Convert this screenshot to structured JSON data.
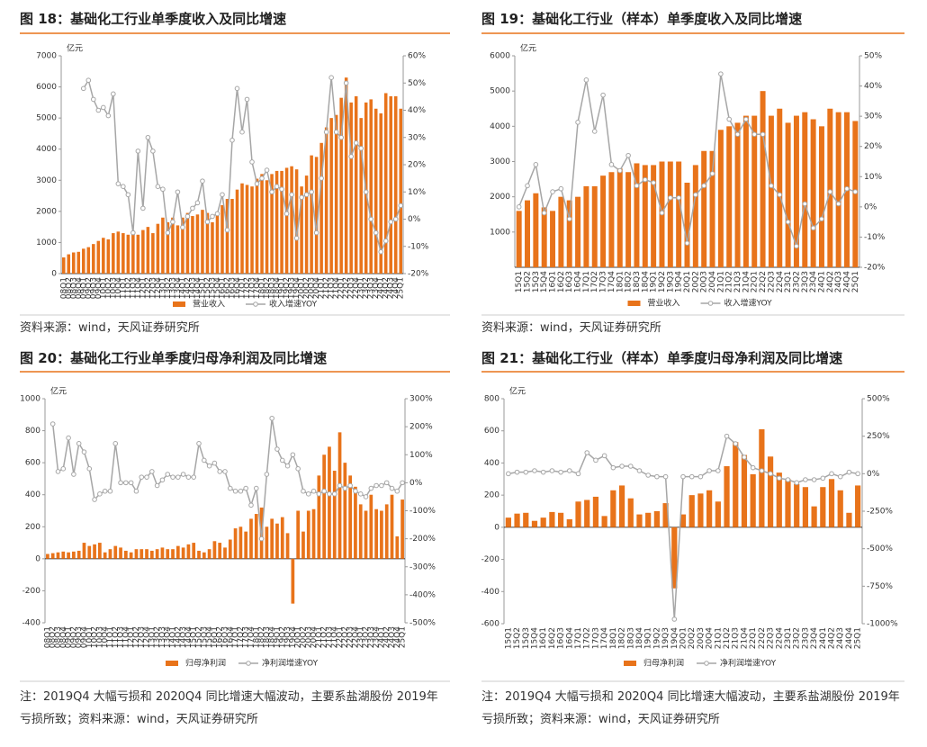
{
  "chart_data": [
    {
      "type": "bar",
      "title": "图 18：基础化工行业单季度收入及同比增速",
      "unit": "亿元",
      "source": "资料来源：wind，天风证券研究所",
      "categories": [
        "08Q1",
        "08Q2",
        "08Q3",
        "08Q4",
        "09Q1",
        "09Q2",
        "09Q3",
        "09Q4",
        "10Q1",
        "10Q2",
        "10Q3",
        "10Q4",
        "11Q1",
        "11Q2",
        "11Q3",
        "11Q4",
        "12Q1",
        "12Q2",
        "12Q3",
        "12Q4",
        "13Q1",
        "13Q2",
        "13Q3",
        "13Q4",
        "14Q1",
        "14Q2",
        "14Q3",
        "14Q4",
        "15Q1",
        "15Q2",
        "15Q3",
        "15Q4",
        "16Q1",
        "16Q2",
        "16Q3",
        "16Q4",
        "17Q1",
        "17Q2",
        "17Q3",
        "17Q4",
        "18Q1",
        "18Q2",
        "18Q3",
        "18Q4",
        "19Q1",
        "19Q2",
        "19Q3",
        "19Q4",
        "20Q1",
        "20Q2",
        "20Q3",
        "20Q4",
        "21Q1",
        "21Q2",
        "21Q3",
        "21Q4",
        "22Q1",
        "22Q2",
        "22Q3",
        "22Q4",
        "23Q1",
        "23Q2",
        "23Q3",
        "23Q4",
        "24Q1",
        "24Q2",
        "24Q3",
        "24Q4",
        "25Q1"
      ],
      "series": [
        {
          "name": "营业收入",
          "color": "#e8731a",
          "values": [
            520,
            620,
            680,
            700,
            800,
            850,
            950,
            1050,
            1150,
            1100,
            1300,
            1350,
            1300,
            1250,
            1350,
            1250,
            1400,
            1500,
            1300,
            1600,
            1800,
            1650,
            1800,
            1550,
            1800,
            1950,
            1850,
            1900,
            2050,
            1950,
            1650,
            1950,
            2200,
            2400,
            2400,
            2700,
            2900,
            2850,
            2800,
            3050,
            3200,
            3000,
            3200,
            3300,
            3300,
            3400,
            3450,
            3350,
            2800,
            3150,
            3800,
            3750,
            4200,
            4700,
            5000,
            5100,
            5650,
            6300,
            5500,
            5700,
            5000,
            5500,
            5600,
            5300,
            5150,
            5800,
            5700,
            5700,
            5300
          ]
        },
        {
          "name": "收入增速YOY",
          "color": "#a6a6a6",
          "axis": "y2",
          "values": [
            null,
            null,
            null,
            null,
            48,
            51,
            44,
            40,
            41,
            38,
            46,
            13,
            12,
            9,
            -5,
            25,
            4,
            30,
            25,
            12,
            11,
            -5,
            -1,
            10,
            -3,
            1,
            4,
            6,
            14,
            -1,
            1,
            2,
            9,
            -4,
            29,
            48,
            32,
            44,
            21,
            13,
            15,
            18,
            10,
            12,
            11,
            2,
            9,
            -7,
            8,
            9,
            10,
            -5,
            15,
            32,
            52,
            32,
            30,
            50,
            23,
            28,
            26,
            10,
            0,
            -5,
            -12,
            -8,
            -1,
            0,
            5
          ]
        }
      ],
      "ylim": [
        0,
        7000
      ],
      "yticks": [
        0,
        1000,
        2000,
        3000,
        4000,
        5000,
        6000,
        7000
      ],
      "y2lim": [
        -20,
        60
      ],
      "y2ticks": [
        {
          "value": 60,
          "label": "60%"
        },
        {
          "value": 50,
          "label": "50%"
        },
        {
          "value": 40,
          "label": "40%"
        },
        {
          "value": 30,
          "label": "30%"
        },
        {
          "value": 20,
          "label": "20%"
        },
        {
          "value": 10,
          "label": "10%"
        },
        {
          "value": 0,
          "label": "0%"
        },
        {
          "value": -10,
          "label": "-10%"
        },
        {
          "value": -20,
          "label": "-20%"
        }
      ]
    },
    {
      "type": "bar",
      "title": "图 19：基础化工行业（样本）单季度收入及同比增速",
      "unit": "亿元",
      "source": "资料来源：wind，天风证券研究所",
      "categories": [
        "15Q1",
        "15Q2",
        "15Q3",
        "15Q4",
        "16Q1",
        "16Q2",
        "16Q3",
        "16Q4",
        "17Q1",
        "17Q2",
        "17Q3",
        "17Q4",
        "18Q1",
        "18Q2",
        "18Q3",
        "18Q4",
        "19Q1",
        "19Q2",
        "19Q3",
        "19Q4",
        "20Q1",
        "20Q2",
        "20Q3",
        "20Q4",
        "21Q1",
        "21Q2",
        "21Q3",
        "21Q4",
        "22Q1",
        "22Q2",
        "22Q3",
        "22Q4",
        "23Q1",
        "23Q2",
        "23Q3",
        "23Q4",
        "24Q1",
        "24Q2",
        "24Q3",
        "24Q4",
        "25Q1"
      ],
      "series": [
        {
          "name": "营业收入",
          "color": "#e8731a",
          "values": [
            1600,
            1900,
            2100,
            1700,
            1600,
            2000,
            1900,
            2000,
            2300,
            2300,
            2600,
            2700,
            2800,
            2700,
            2950,
            2900,
            2900,
            3000,
            3000,
            3000,
            2400,
            2900,
            3300,
            3300,
            3900,
            4000,
            4100,
            4300,
            4300,
            5000,
            4300,
            4500,
            4100,
            4300,
            4400,
            4200,
            4000,
            4500,
            4400,
            4400,
            4150
          ]
        },
        {
          "name": "收入增速YOY",
          "color": "#a6a6a6",
          "axis": "y2",
          "values": [
            0,
            7,
            14,
            -2,
            5,
            6,
            -4,
            28,
            42,
            25,
            37,
            14,
            12,
            17,
            7,
            9,
            8,
            -2,
            3,
            3,
            -12,
            4,
            7,
            11,
            44,
            29,
            24,
            29,
            24,
            24,
            7,
            4,
            -5,
            -13,
            1,
            -7,
            -4,
            5,
            1,
            6,
            5
          ]
        }
      ],
      "ylim": [
        0,
        6000
      ],
      "yticks": [
        1000,
        2000,
        3000,
        4000,
        5000,
        6000
      ],
      "y2lim": [
        -20,
        50
      ],
      "y2ticks": [
        {
          "value": 50,
          "label": "50%"
        },
        {
          "value": 40,
          "label": "40%"
        },
        {
          "value": 30,
          "label": "30%"
        },
        {
          "value": 20,
          "label": "20%"
        },
        {
          "value": 10,
          "label": "10%"
        },
        {
          "value": 0,
          "label": "0%"
        },
        {
          "value": -10,
          "label": "-10%"
        },
        {
          "value": -20,
          "label": "-20%"
        }
      ]
    },
    {
      "type": "bar",
      "title": "图 20：基础化工行业单季度归母净利润及同比增速",
      "unit": "亿元",
      "source": "注：2019Q4 大幅亏损和 2020Q4 同比增速大幅波动，主要系盐湖股份 2019年亏损所致；资料来源：wind，天风证券研究所",
      "categories": [
        "08Q1",
        "08Q2",
        "08Q3",
        "08Q4",
        "09Q1",
        "09Q2",
        "09Q3",
        "09Q4",
        "10Q1",
        "10Q2",
        "10Q3",
        "10Q4",
        "11Q1",
        "11Q2",
        "11Q3",
        "11Q4",
        "12Q1",
        "12Q2",
        "12Q3",
        "12Q4",
        "13Q1",
        "13Q2",
        "13Q3",
        "13Q4",
        "14Q1",
        "14Q2",
        "14Q3",
        "14Q4",
        "15Q1",
        "15Q2",
        "15Q3",
        "15Q4",
        "16Q1",
        "16Q2",
        "16Q3",
        "16Q4",
        "17Q1",
        "17Q2",
        "17Q3",
        "17Q4",
        "18Q1",
        "18Q2",
        "18Q3",
        "18Q4",
        "19Q1",
        "19Q2",
        "19Q3",
        "19Q4",
        "20Q1",
        "20Q2",
        "20Q3",
        "20Q4",
        "21Q1",
        "21Q2",
        "21Q3",
        "21Q4",
        "22Q1",
        "22Q2",
        "22Q3",
        "22Q4",
        "23Q1",
        "23Q2",
        "23Q3",
        "23Q4",
        "24Q1",
        "24Q2",
        "24Q3",
        "24Q4",
        "25Q1"
      ],
      "series": [
        {
          "name": "归母净利润",
          "color": "#e8731a",
          "values": [
            30,
            35,
            40,
            45,
            40,
            45,
            50,
            100,
            80,
            90,
            100,
            40,
            60,
            80,
            70,
            50,
            40,
            60,
            60,
            60,
            50,
            60,
            70,
            60,
            60,
            80,
            70,
            90,
            100,
            50,
            40,
            60,
            110,
            100,
            70,
            120,
            190,
            200,
            170,
            250,
            280,
            320,
            200,
            250,
            220,
            260,
            160,
            -280,
            300,
            170,
            300,
            310,
            520,
            650,
            700,
            550,
            790,
            600,
            520,
            450,
            340,
            300,
            400,
            310,
            300,
            340,
            400,
            140,
            370
          ]
        },
        {
          "name": "净利润增速YOY",
          "color": "#a6a6a6",
          "axis": "y2",
          "values": [
            null,
            210,
            40,
            50,
            160,
            30,
            140,
            110,
            50,
            -60,
            -40,
            -30,
            -30,
            140,
            0,
            0,
            0,
            -30,
            20,
            20,
            40,
            -10,
            10,
            30,
            20,
            20,
            30,
            20,
            20,
            140,
            80,
            60,
            70,
            40,
            40,
            -20,
            -30,
            -30,
            -20,
            -80,
            -20,
            -200,
            30,
            230,
            120,
            80,
            60,
            100,
            50,
            -30,
            -40,
            -30,
            -40,
            -30,
            -40,
            -40,
            -10,
            -20,
            -10,
            -30,
            -40,
            -50,
            -20,
            -10,
            -10,
            0,
            -20,
            -30,
            0
          ]
        }
      ],
      "ylim": [
        -400,
        1000
      ],
      "yticks": [
        -400,
        -200,
        0,
        200,
        400,
        600,
        800,
        1000
      ],
      "y2lim": [
        -500,
        300
      ],
      "y2ticks": [
        {
          "value": 300,
          "label": "300%"
        },
        {
          "value": 200,
          "label": "200%"
        },
        {
          "value": 100,
          "label": "100%"
        },
        {
          "value": 0,
          "label": "0%"
        },
        {
          "value": -100,
          "label": "-100%"
        },
        {
          "value": -200,
          "label": "-200%"
        },
        {
          "value": -300,
          "label": "-300%"
        },
        {
          "value": -400,
          "label": "-400%"
        },
        {
          "value": -500,
          "label": "-500%"
        }
      ]
    },
    {
      "type": "bar",
      "title": "图 21：基础化工行业（样本）单季度归母净利润及同比增速",
      "unit": "亿元",
      "source": "注：2019Q4 大幅亏损和 2020Q4 同比增速大幅波动，主要系盐湖股份 2019年亏损所致；资料来源：wind，天风证券研究所",
      "categories": [
        "15Q1",
        "15Q2",
        "15Q3",
        "15Q4",
        "16Q1",
        "16Q2",
        "16Q3",
        "16Q4",
        "17Q1",
        "17Q2",
        "17Q3",
        "17Q4",
        "18Q1",
        "18Q2",
        "18Q3",
        "18Q4",
        "19Q1",
        "19Q2",
        "19Q3",
        "19Q4",
        "20Q1",
        "20Q2",
        "20Q3",
        "20Q4",
        "21Q1",
        "21Q2",
        "21Q3",
        "21Q4",
        "22Q1",
        "22Q2",
        "22Q3",
        "22Q4",
        "23Q1",
        "23Q2",
        "23Q3",
        "23Q4",
        "24Q1",
        "24Q2",
        "24Q3",
        "24Q4",
        "25Q1"
      ],
      "series": [
        {
          "name": "归母净利润",
          "color": "#e8731a",
          "values": [
            60,
            85,
            90,
            40,
            60,
            95,
            90,
            50,
            160,
            170,
            190,
            70,
            230,
            260,
            180,
            80,
            90,
            100,
            150,
            -380,
            80,
            200,
            210,
            230,
            160,
            380,
            530,
            450,
            330,
            610,
            440,
            340,
            300,
            270,
            250,
            130,
            250,
            300,
            230,
            90,
            260
          ]
        },
        {
          "name": "净利润增速YOY",
          "color": "#a6a6a6",
          "axis": "y2",
          "values": [
            0,
            10,
            10,
            20,
            10,
            20,
            10,
            20,
            0,
            140,
            90,
            120,
            40,
            50,
            50,
            20,
            -10,
            -20,
            -20,
            -970,
            -20,
            -20,
            -20,
            20,
            20,
            250,
            200,
            110,
            40,
            20,
            0,
            -30,
            -40,
            -60,
            -40,
            -40,
            -30,
            0,
            -20,
            10,
            0
          ]
        }
      ],
      "ylim": [
        -600,
        800
      ],
      "yticks": [
        -600,
        -400,
        -200,
        0,
        200,
        400,
        600,
        800
      ],
      "y2lim": [
        -1000,
        500
      ],
      "y2ticks": [
        {
          "value": 500,
          "label": "500%"
        },
        {
          "value": 250,
          "label": "250%"
        },
        {
          "value": 0,
          "label": "0%"
        },
        {
          "value": -250,
          "label": "-250%"
        },
        {
          "value": -500,
          "label": "-500%"
        },
        {
          "value": -750,
          "label": "-750%"
        },
        {
          "value": -1000,
          "label": "-1000%"
        }
      ]
    }
  ]
}
